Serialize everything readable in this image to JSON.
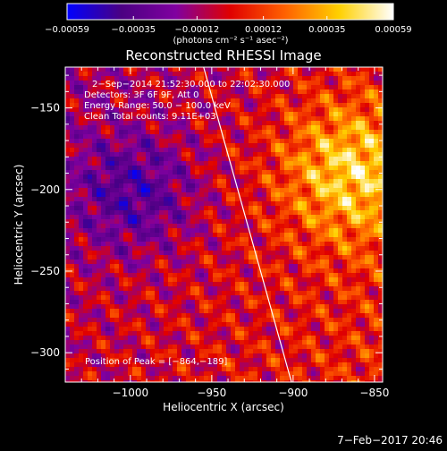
{
  "chart_data": {
    "type": "heatmap",
    "title": "Reconstructed RHESSI Image",
    "xlabel": "Heliocentric X (arcsec)",
    "ylabel": "Heliocentric Y (arcsec)",
    "xlim": [
      -1040,
      -845
    ],
    "ylim": [
      -318,
      -125
    ],
    "x_ticks": [
      -1000,
      -950,
      -900,
      -850
    ],
    "x_tick_labels": [
      "−1000",
      "−950",
      "−900",
      "−850"
    ],
    "y_ticks": [
      -150,
      -200,
      -250,
      -300
    ],
    "y_tick_labels": [
      "−150",
      "−200",
      "−250",
      "−300"
    ],
    "colorbar": {
      "range": [
        -0.00059,
        0.00059
      ],
      "tick_values": [
        -0.00059,
        -0.00035,
        -0.00012,
        0.00012,
        0.00035,
        0.00059
      ],
      "tick_labels": [
        "−0.00059",
        "−0.00035",
        "−0.00012",
        "0.00012",
        "0.00035",
        "0.00059"
      ],
      "unit_label": "(photons cm⁻² s⁻¹ asec⁻²)",
      "colors": [
        "#0000ff",
        "#4b0082",
        "#8000a0",
        "#e00000",
        "#ff6000",
        "#ffd000",
        "#ffffff"
      ]
    },
    "annotations": [
      "2−Sep−2014 21:52:30.000 to 22:02:30.000",
      "Detectors: 3F 6F 9F, Att 0",
      "Energy Range: 50.0 − 100.0 keV",
      "Clean    Total counts: 9.11E+03"
    ],
    "peak_label": "Position of Peak = [−864,−189]",
    "peak": {
      "x": -864,
      "y": -189
    },
    "limb_line": [
      [
        -955,
        -125
      ],
      [
        -901,
        -318
      ]
    ],
    "grid": false
  },
  "footer": {
    "date": "7−Feb−2017 20:46"
  }
}
